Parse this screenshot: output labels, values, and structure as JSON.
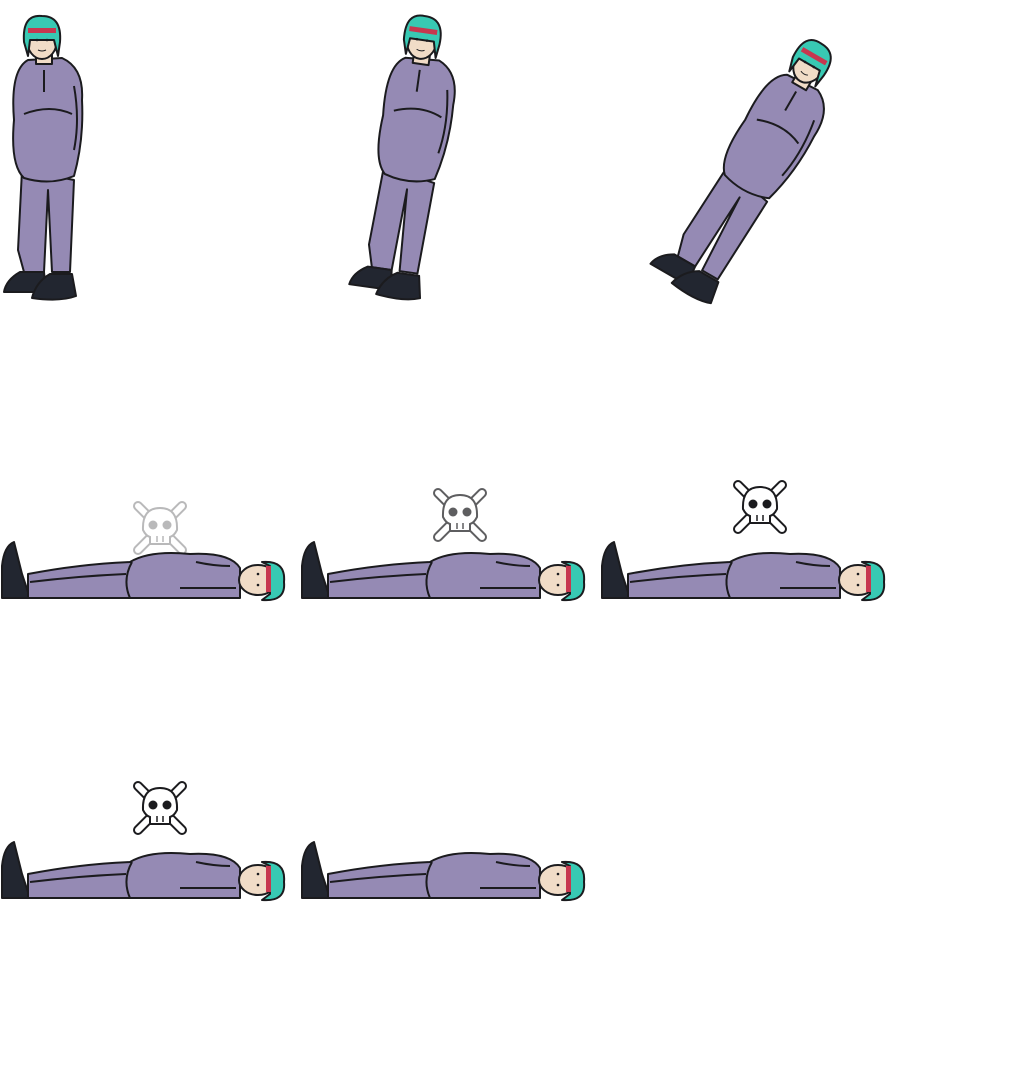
{
  "sprite_sheet": {
    "palette": {
      "suit": "#958ab4",
      "outline": "#1b1b1e",
      "hair": "#38c9b3",
      "headband": "#c7374f",
      "skin": "#f1dcc7",
      "boots": "#222630",
      "skull": "#ffffff"
    },
    "frames": [
      {
        "pose": "standing",
        "lean_deg": 0,
        "skull_opacity": 0
      },
      {
        "pose": "standing",
        "lean_deg": 6,
        "skull_opacity": 0
      },
      {
        "pose": "standing",
        "lean_deg": 24,
        "skull_opacity": 0
      },
      {
        "pose": "lying",
        "lean_deg": 90,
        "skull_opacity": 0.3
      },
      {
        "pose": "lying",
        "lean_deg": 90,
        "skull_opacity": 0.65
      },
      {
        "pose": "lying",
        "lean_deg": 90,
        "skull_opacity": 1
      },
      {
        "pose": "lying",
        "lean_deg": 90,
        "skull_opacity": 1
      },
      {
        "pose": "lying",
        "lean_deg": 90,
        "skull_opacity": 0
      }
    ],
    "icons": [
      "person-sprite",
      "skull-crossbones-icon"
    ]
  }
}
